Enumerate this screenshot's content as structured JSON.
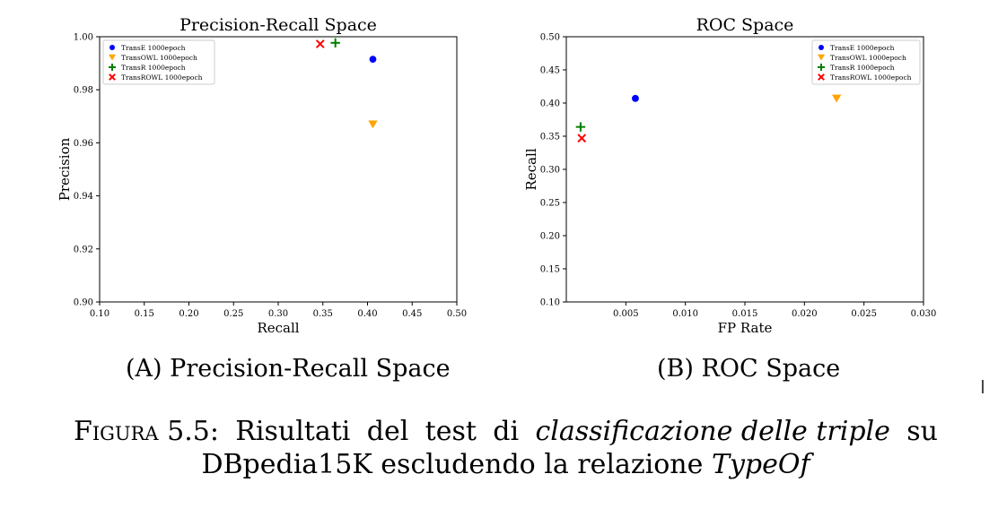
{
  "chart_data": [
    {
      "type": "scatter",
      "title": "Precision-Recall Space",
      "xlabel": "Recall",
      "ylabel": "Precision",
      "xlim": [
        0.1,
        0.5
      ],
      "ylim": [
        0.9,
        1.0
      ],
      "xticks": [
        "0.10",
        "0.15",
        "0.20",
        "0.25",
        "0.30",
        "0.35",
        "0.40",
        "0.45",
        "0.50"
      ],
      "yticks": [
        "0.90",
        "0.92",
        "0.94",
        "0.96",
        "0.98",
        "1.00"
      ],
      "legend_position": "top-left",
      "grid": false,
      "series": [
        {
          "name": "TransE 1000epoch",
          "marker": "circle",
          "color": "#0000ff",
          "x": 0.406,
          "y": 0.9915
        },
        {
          "name": "TransOWL 1000epoch",
          "marker": "triangle-down",
          "color": "#ffa500",
          "x": 0.406,
          "y": 0.967
        },
        {
          "name": "TransR 1000epoch",
          "marker": "plus",
          "color": "#008000",
          "x": 0.364,
          "y": 0.9977
        },
        {
          "name": "TransROWL 1000epoch",
          "marker": "x",
          "color": "#ff0000",
          "x": 0.347,
          "y": 0.9973
        }
      ]
    },
    {
      "type": "scatter",
      "title": "ROC Space",
      "xlabel": "FP Rate",
      "ylabel": "Recall",
      "xlim": [
        0.0,
        0.03
      ],
      "ylim": [
        0.1,
        0.5
      ],
      "xticks": [
        "0.005",
        "0.010",
        "0.015",
        "0.020",
        "0.025",
        "0.030"
      ],
      "yticks": [
        "0.10",
        "0.15",
        "0.20",
        "0.25",
        "0.30",
        "0.35",
        "0.40",
        "0.45",
        "0.50"
      ],
      "legend_position": "top-right",
      "grid": false,
      "series": [
        {
          "name": "TransE 1000epoch",
          "marker": "circle",
          "color": "#0000ff",
          "x": 0.0058,
          "y": 0.407
        },
        {
          "name": "TransOWL 1000epoch",
          "marker": "triangle-down",
          "color": "#ffa500",
          "x": 0.0227,
          "y": 0.407
        },
        {
          "name": "TransR 1000epoch",
          "marker": "plus",
          "color": "#008000",
          "x": 0.0012,
          "y": 0.364
        },
        {
          "name": "TransROWL 1000epoch",
          "marker": "x",
          "color": "#ff0000",
          "x": 0.0013,
          "y": 0.347
        }
      ]
    }
  ],
  "captions": {
    "a_label": "A",
    "a_text": "Precision-Recall Space",
    "b_label": "B",
    "b_text": "ROC Space"
  },
  "figure_caption": {
    "label": "Figura",
    "number": "5.5:",
    "w1": "Risultati",
    "w2": "del",
    "w3": "test",
    "w4": "di",
    "w5_italic": "classificazione delle triple",
    "w6": "su",
    "line2_text": "DBpedia15K escludendo la relazione",
    "line2_italic": "TypeOf"
  },
  "cursor_glyph": "I"
}
